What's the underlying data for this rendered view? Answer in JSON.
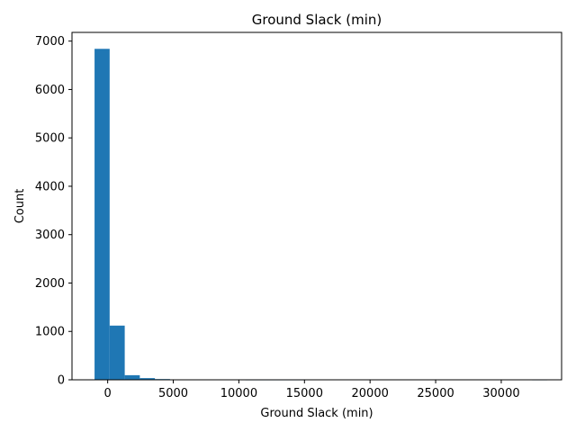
{
  "chart_data": {
    "type": "bar",
    "title": "Ground Slack (min)",
    "xlabel": "Ground Slack (min)",
    "ylabel": "Count",
    "bin_width": 1150,
    "bin_start": -1000,
    "values": [
      6840,
      1120,
      95,
      35,
      15,
      8,
      4,
      3,
      2,
      2,
      1,
      1,
      1,
      1,
      0,
      0,
      0,
      0,
      0,
      0,
      0,
      0,
      0,
      0,
      0,
      0,
      0,
      0,
      0,
      1
    ],
    "xlim": [
      -2720,
      34600
    ],
    "ylim": [
      0,
      7180
    ],
    "xticks": [
      0,
      5000,
      10000,
      15000,
      20000,
      25000,
      30000
    ],
    "yticks": [
      0,
      1000,
      2000,
      3000,
      4000,
      5000,
      6000,
      7000
    ],
    "bar_color": "#1f77b4",
    "grid": false,
    "legend": "none"
  }
}
